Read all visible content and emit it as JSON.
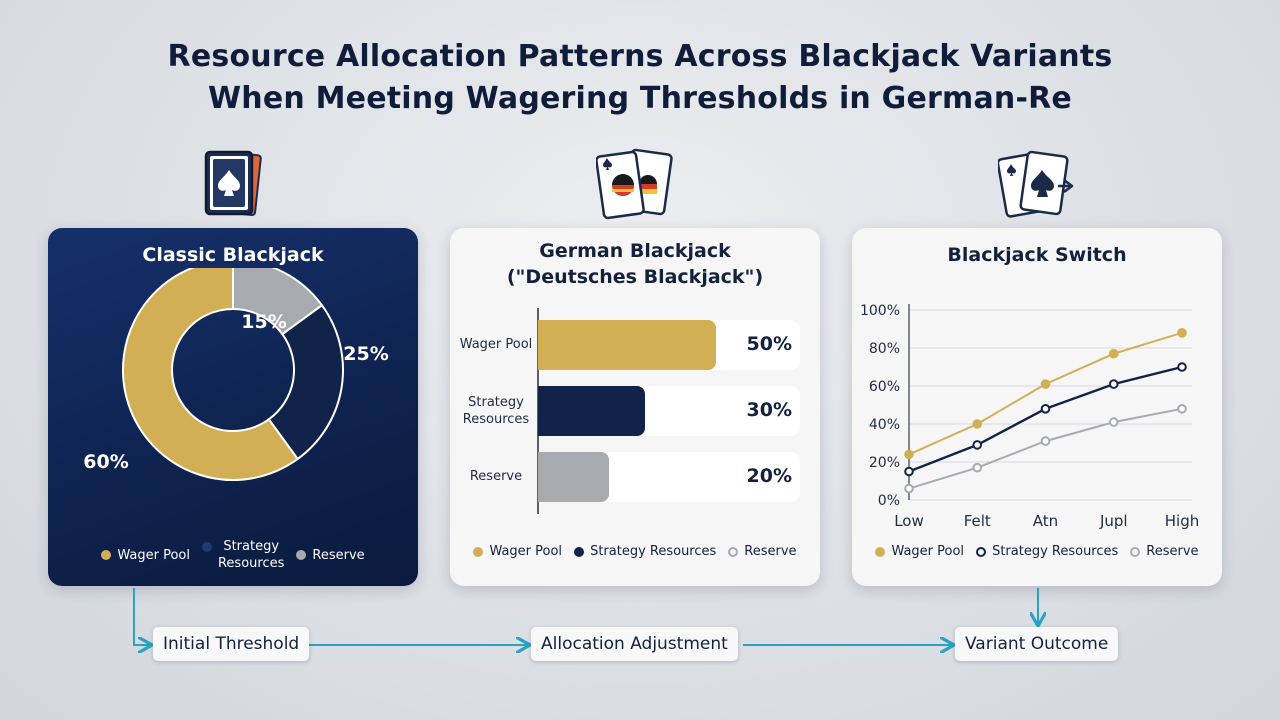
{
  "title_lines": [
    "Resource Allocation Patterns Across Blackjack Variants",
    "When Meeting Wagering Thresholds in German-Re"
  ],
  "colors": {
    "wager_pool": "#d2ae55",
    "strategy_resources": "#12234a",
    "reserve": "#a7aaaf",
    "navy_panel": "#10244f",
    "flow_arrow": "#2aa2c2"
  },
  "icons": [
    "spade-cards-icon",
    "german-flag-cards-icon",
    "switch-cards-icon"
  ],
  "chart_data": [
    {
      "type": "donut",
      "title": "Classic Blackjack",
      "categories": [
        "Wager Pool",
        "Strategy Resources",
        "Reserve"
      ],
      "values": [
        60,
        25,
        15
      ],
      "value_labels": [
        "60%",
        "25%",
        "15%"
      ],
      "legend": [
        "Wager Pool",
        "Strategy\nResources",
        "Reserve"
      ],
      "legend_position": "bottom"
    },
    {
      "type": "bar",
      "orientation": "horizontal",
      "title_lines": [
        "German Blackjack",
        "(\"Deutsches Blackjack\")"
      ],
      "categories": [
        "Wager Pool",
        "Strategy\nResources",
        "Reserve"
      ],
      "values": [
        50,
        30,
        20
      ],
      "value_labels": [
        "50%",
        "30%",
        "20%"
      ],
      "xlim": [
        0,
        100
      ],
      "legend": [
        "Wager Pool",
        "Strategy Resources",
        "Reserve"
      ],
      "legend_position": "bottom"
    },
    {
      "type": "line",
      "title": "Blackjack Switch",
      "x": [
        "Low",
        "Felt",
        "Atn",
        "Jupl",
        "High"
      ],
      "series": [
        {
          "name": "Wager Pool",
          "values": [
            24,
            40,
            61,
            77,
            88
          ]
        },
        {
          "name": "Strategy Resources",
          "values": [
            15,
            29,
            48,
            61,
            70
          ]
        },
        {
          "name": "Reserve",
          "values": [
            6,
            17,
            31,
            41,
            48
          ]
        }
      ],
      "ylim": [
        0,
        100
      ],
      "yticks": [
        "0%",
        "20%",
        "40%",
        "60%",
        "80%",
        "100%"
      ],
      "grid": true,
      "legend": [
        "Wager Pool",
        "Strategy Resources",
        "Reserve"
      ],
      "legend_position": "bottom"
    }
  ],
  "flow": {
    "steps": [
      "Initial Threshold",
      "Allocation Adjustment",
      "Variant Outcome"
    ]
  }
}
